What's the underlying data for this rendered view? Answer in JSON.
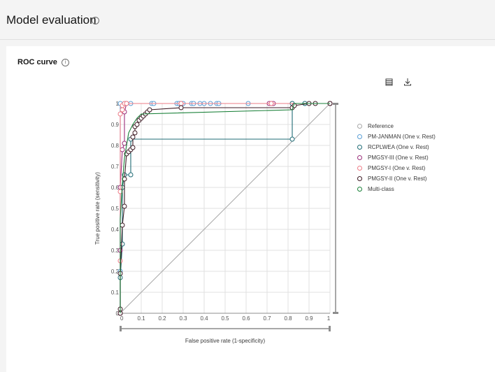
{
  "header": {
    "title": "Model evaluation",
    "info_icon": "info-icon"
  },
  "card": {
    "title": "ROC curve",
    "info_icon": "info-icon"
  },
  "toolbar": {
    "table_icon": "table-view-icon",
    "download_icon": "download-icon"
  },
  "chart_data": {
    "type": "line",
    "title": "",
    "xlabel": "False positive rate (1-specificity)",
    "ylabel": "True positive rate (sensitivity)",
    "xlim": [
      0,
      1
    ],
    "ylim": [
      0,
      1
    ],
    "xticks": [
      "0",
      "0.1",
      "0.2",
      "0.3",
      "0.4",
      "0.5",
      "0.6",
      "0.7",
      "0.8",
      "0.9",
      "1"
    ],
    "yticks": [
      "0",
      "0.1",
      "0.2",
      "0.3",
      "0.4",
      "0.5",
      "0.6",
      "0.7",
      "0.8",
      "0.9",
      "1"
    ],
    "grid": true,
    "legend_position": "right",
    "series": [
      {
        "name": "Reference",
        "color": "#a8a8a8",
        "markers": false,
        "points": [
          [
            0,
            0
          ],
          [
            1,
            1
          ]
        ]
      },
      {
        "name": "PM-JANMAN (One v. Rest)",
        "color": "#5a9fd6",
        "markers": true,
        "points": [
          [
            0,
            0
          ],
          [
            0,
            0.2
          ],
          [
            0,
            0.6
          ],
          [
            0,
            1
          ],
          [
            0.02,
            1
          ],
          [
            0.05,
            1
          ],
          [
            0.15,
            1
          ],
          [
            0.16,
            1
          ],
          [
            0.27,
            1
          ],
          [
            0.28,
            1
          ],
          [
            0.29,
            1
          ],
          [
            0.3,
            1
          ],
          [
            0.34,
            1
          ],
          [
            0.35,
            1
          ],
          [
            0.38,
            1
          ],
          [
            0.4,
            1
          ],
          [
            0.43,
            1
          ],
          [
            0.46,
            1
          ],
          [
            0.47,
            1
          ],
          [
            0.61,
            1
          ],
          [
            0.82,
            1
          ],
          [
            0.88,
            1
          ],
          [
            1,
            1
          ]
        ]
      },
      {
        "name": "RCPLWEA (One v. Rest)",
        "color": "#1f6b75",
        "markers": true,
        "points": [
          [
            0,
            0
          ],
          [
            0,
            0.17
          ],
          [
            0.01,
            0.33
          ],
          [
            0.01,
            0.6
          ],
          [
            0.02,
            0.66
          ],
          [
            0.05,
            0.66
          ],
          [
            0.05,
            0.83
          ],
          [
            0.82,
            0.83
          ],
          [
            0.82,
            1
          ],
          [
            0.88,
            1
          ],
          [
            1,
            1
          ]
        ]
      },
      {
        "name": "PMGSY-III (One v. Rest)",
        "color": "#9b2f7a",
        "markers": true,
        "points": [
          [
            0,
            0
          ],
          [
            0,
            0.3
          ],
          [
            0,
            0.6
          ],
          [
            0.01,
            0.78
          ],
          [
            0.02,
            0.81
          ],
          [
            0.02,
            0.96
          ],
          [
            0.03,
            1
          ],
          [
            0.29,
            1
          ],
          [
            0.71,
            1
          ],
          [
            0.72,
            1
          ],
          [
            0.73,
            1
          ],
          [
            1,
            1
          ]
        ]
      },
      {
        "name": "PMGSY-I (One v. Rest)",
        "color": "#ee7c87",
        "markers": true,
        "points": [
          [
            0,
            0
          ],
          [
            0,
            0.25
          ],
          [
            0,
            0.58
          ],
          [
            0,
            0.95
          ],
          [
            0.01,
            0.97
          ],
          [
            0.01,
            0.99
          ],
          [
            0.02,
            1
          ],
          [
            0.03,
            1
          ],
          [
            0.29,
            1
          ],
          [
            0.72,
            1
          ],
          [
            1,
            1
          ]
        ]
      },
      {
        "name": "PMGSY-II (One v. Rest)",
        "color": "#3d1a24",
        "markers": true,
        "points": [
          [
            0,
            0
          ],
          [
            0,
            0.02
          ],
          [
            0,
            0.19
          ],
          [
            0.01,
            0.42
          ],
          [
            0.02,
            0.51
          ],
          [
            0.02,
            0.64
          ],
          [
            0.03,
            0.76
          ],
          [
            0.04,
            0.77
          ],
          [
            0.05,
            0.78
          ],
          [
            0.06,
            0.79
          ],
          [
            0.06,
            0.84
          ],
          [
            0.07,
            0.86
          ],
          [
            0.07,
            0.89
          ],
          [
            0.08,
            0.9
          ],
          [
            0.09,
            0.92
          ],
          [
            0.1,
            0.93
          ],
          [
            0.11,
            0.94
          ],
          [
            0.12,
            0.95
          ],
          [
            0.13,
            0.96
          ],
          [
            0.14,
            0.97
          ],
          [
            0.29,
            0.98
          ],
          [
            0.82,
            0.98
          ],
          [
            0.83,
            0.99
          ],
          [
            0.9,
            1
          ],
          [
            0.93,
            1
          ],
          [
            1,
            1
          ]
        ]
      },
      {
        "name": "Multi-class",
        "color": "#198038",
        "markers": false,
        "points": [
          [
            0,
            0
          ],
          [
            0,
            0.45
          ],
          [
            0.01,
            0.62
          ],
          [
            0.02,
            0.74
          ],
          [
            0.03,
            0.8
          ],
          [
            0.04,
            0.86
          ],
          [
            0.06,
            0.9
          ],
          [
            0.08,
            0.93
          ],
          [
            0.1,
            0.95
          ],
          [
            0.82,
            0.97
          ],
          [
            0.83,
            1
          ],
          [
            1,
            1
          ]
        ]
      }
    ]
  }
}
